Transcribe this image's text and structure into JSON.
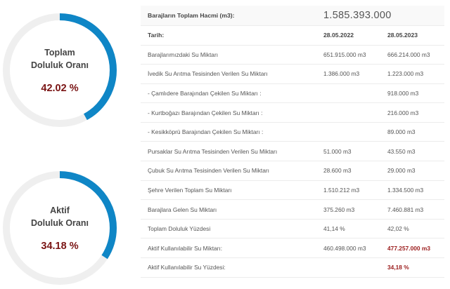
{
  "gauges": [
    {
      "title_line1": "Toplam",
      "title_line2": "Doluluk Oranı",
      "value": "42.02 %",
      "fraction": 0.4202,
      "ring_color": "#0f86c6",
      "track_color": "#efefef"
    },
    {
      "title_line1": "Aktif",
      "title_line2": "Doluluk Oranı",
      "value": "34.18 %",
      "fraction": 0.3418,
      "ring_color": "#0f86c6",
      "track_color": "#efefef"
    }
  ],
  "table": {
    "total_label": "Barajların Toplam Hacmi (m3):",
    "total_value": "1.585.393.000",
    "date_label": "Tarih:",
    "date1": "28.05.2022",
    "date2": "28.05.2023",
    "rows": [
      {
        "label": "Barajlarımızdaki Su Miktarı",
        "v1": "651.915.000 m3",
        "v2": "666.214.000 m3"
      },
      {
        "label": "İvedik Su Arıtma Tesisinden Verilen Su Miktarı",
        "v1": "1.386.000 m3",
        "v2": "1.223.000 m3"
      },
      {
        "label": "- Çamlıdere Barajından Çekilen Su Miktarı :",
        "v1": "",
        "v2": "918.000 m3"
      },
      {
        "label": "- Kurtboğazı Barajından Çekilen Su Miktarı :",
        "v1": "",
        "v2": "216.000 m3"
      },
      {
        "label": "- Kesikköprü Barajından Çekilen Su Miktarı :",
        "v1": "",
        "v2": "89.000 m3"
      },
      {
        "label": "Pursaklar Su Arıtma Tesisinden Verilen Su Miktarı",
        "v1": "51.000 m3",
        "v2": "43.550 m3"
      },
      {
        "label": "Çubuk Su Arıtma Tesisinden Verilen Su Miktarı",
        "v1": "28.600 m3",
        "v2": "29.000 m3"
      },
      {
        "label": "Şehre Verilen Toplam Su Miktarı",
        "v1": "1.510.212 m3",
        "v2": "1.334.500 m3"
      },
      {
        "label": "Barajlara Gelen Su Miktarı",
        "v1": "375.260 m3",
        "v2": "7.460.881 m3"
      },
      {
        "label": "Toplam Doluluk Yüzdesi",
        "v1": "41,14 %",
        "v2": "42,02 %"
      },
      {
        "label": "Aktif Kullanılabilir Su Miktarı:",
        "v1": "460.498.000 m3",
        "v2": "477.257.000 m3",
        "v2_highlight": true
      },
      {
        "label": "Aktif Kullanılabilir Su Yüzdesi:",
        "v1": "",
        "v2": "34,18 %",
        "v2_highlight": true
      }
    ]
  }
}
